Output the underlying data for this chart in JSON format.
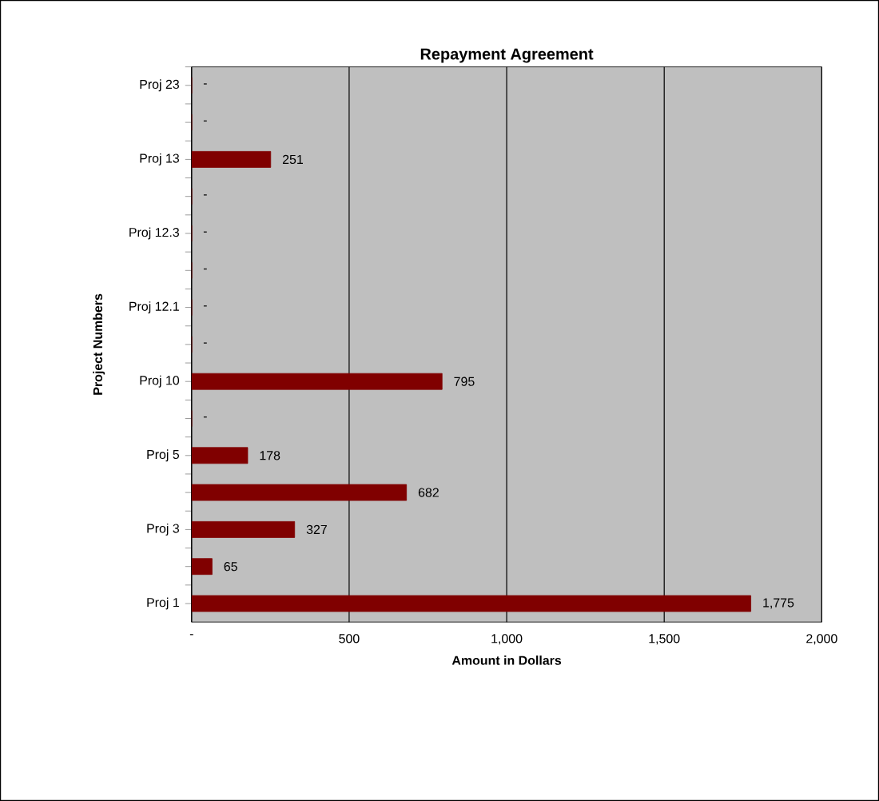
{
  "chart_data": {
    "type": "bar",
    "orientation": "horizontal",
    "title": "Repayment Agreement",
    "xlabel": "Amount in Dollars",
    "ylabel": "Project Numbers",
    "categories": [
      "Proj 23",
      null,
      "Proj 13",
      null,
      "Proj 12.3",
      null,
      "Proj 12.1",
      null,
      "Proj 10",
      null,
      "Proj 5",
      null,
      "Proj 3",
      null,
      "Proj 1"
    ],
    "values": [
      0,
      0,
      251,
      0,
      0,
      0,
      0,
      0,
      795,
      0,
      178,
      682,
      327,
      65,
      1775
    ],
    "value_labels": [
      "-",
      "-",
      "251",
      "-",
      "-",
      "-",
      "-",
      "-",
      "795",
      "-",
      "178",
      "682",
      "327",
      "65",
      "1,775"
    ],
    "color": "#800000",
    "xlim": [
      0,
      2000
    ],
    "xticks": [
      {
        "value": 0,
        "label": "-"
      },
      {
        "value": 500,
        "label": "500"
      },
      {
        "value": 1000,
        "label": "1,000"
      },
      {
        "value": 1500,
        "label": "1,500"
      },
      {
        "value": 2000,
        "label": "2,000"
      }
    ],
    "grid": "x"
  }
}
